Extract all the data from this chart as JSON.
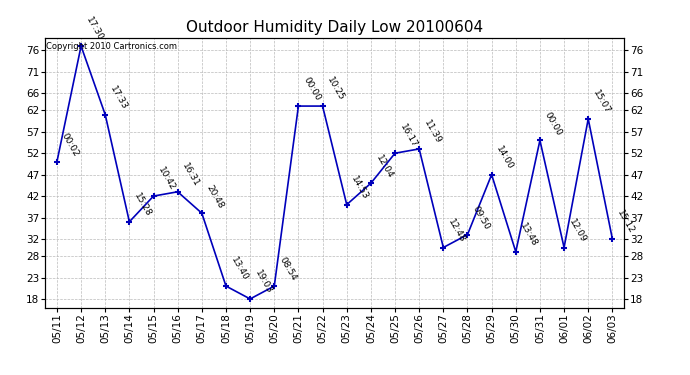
{
  "title": "Outdoor Humidity Daily Low 20100604",
  "copyright_text": "Copyright 2010 Cartronics.com",
  "x_labels": [
    "05/11",
    "05/12",
    "05/13",
    "05/14",
    "05/15",
    "05/16",
    "05/17",
    "05/18",
    "05/19",
    "05/20",
    "05/21",
    "05/22",
    "05/23",
    "05/24",
    "05/25",
    "05/26",
    "05/27",
    "05/28",
    "05/29",
    "05/30",
    "05/31",
    "06/01",
    "06/02",
    "06/03"
  ],
  "y_values": [
    50,
    77,
    61,
    36,
    42,
    43,
    38,
    21,
    18,
    21,
    63,
    63,
    40,
    45,
    52,
    53,
    30,
    33,
    47,
    29,
    55,
    30,
    60,
    32
  ],
  "time_labels": [
    "00:02",
    "17:30",
    "17:33",
    "15:28",
    "10:42",
    "16:31",
    "20:48",
    "13:40",
    "19:03",
    "08:54",
    "00:00",
    "10:25",
    "14:53",
    "12:04",
    "16:17",
    "11:39",
    "12:48",
    "09:50",
    "14:00",
    "13:48",
    "00:00",
    "12:09",
    "15:07",
    "15:12"
  ],
  "ylim_min": 16,
  "ylim_max": 79,
  "yticks": [
    18,
    23,
    28,
    32,
    37,
    42,
    47,
    52,
    57,
    62,
    66,
    71,
    76
  ],
  "line_color": "#0000bb",
  "marker_color": "#0000bb",
  "background_color": "#ffffff",
  "grid_color": "#bbbbbb",
  "title_fontsize": 11,
  "annotation_fontsize": 6.5,
  "tick_fontsize": 7.5
}
